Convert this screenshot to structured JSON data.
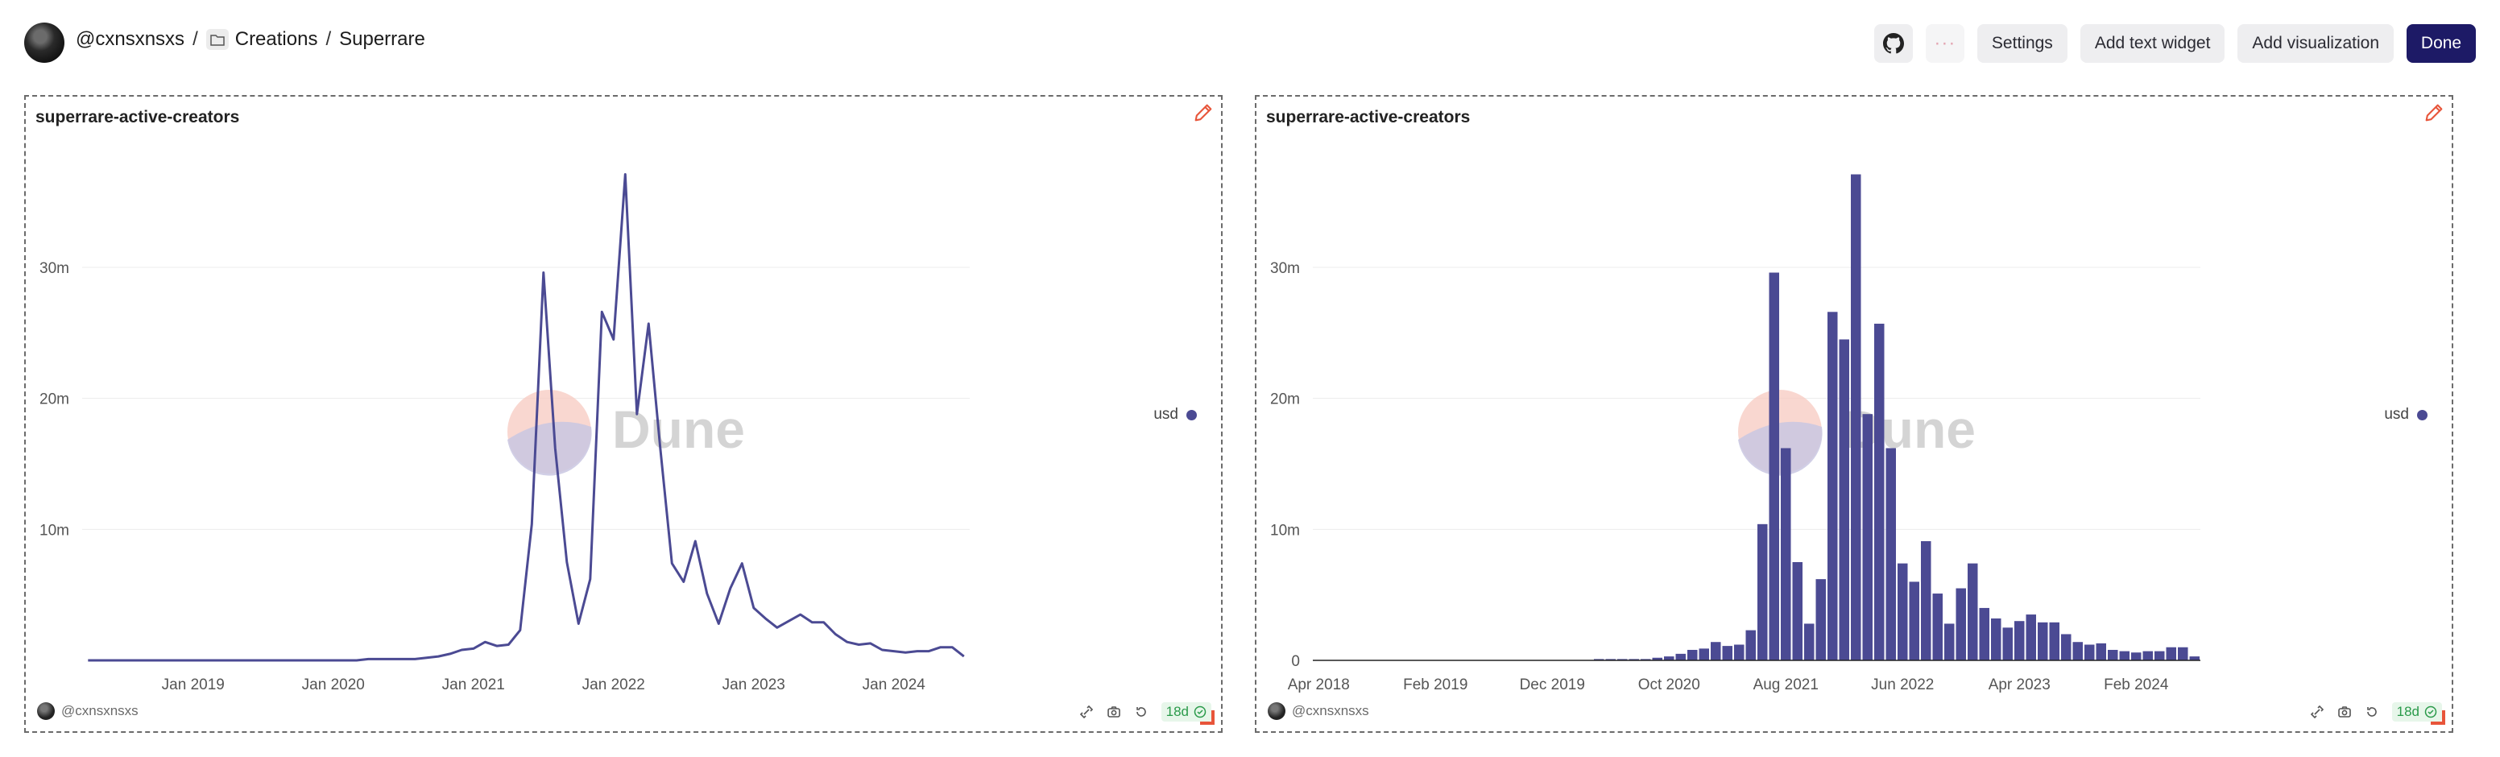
{
  "header": {
    "username": "@cxnsxnsxs",
    "separator": "/",
    "folder": "Creations",
    "dashboard": "Superrare"
  },
  "toolbar": {
    "more_label": "···",
    "settings_label": "Settings",
    "add_text_label": "Add text widget",
    "add_viz_label": "Add visualization",
    "done_label": "Done"
  },
  "colors": {
    "series": "#4b4a93",
    "done_button": "#1d1a66",
    "accent_edit": "#e8553a"
  },
  "panels": [
    {
      "title": "superrare-active-creators",
      "legend": "usd",
      "watermark": "Dune",
      "footer_user": "@cxnsxnsxs",
      "age": "18d"
    },
    {
      "title": "superrare-active-creators",
      "legend": "usd",
      "watermark": "Dune",
      "footer_user": "@cxnsxnsxs",
      "age": "18d"
    }
  ],
  "chart_data": [
    {
      "type": "line",
      "title": "superrare-active-creators",
      "series_name": "usd",
      "x_tick_labels": [
        "Jan 2019",
        "Jan 2020",
        "Jan 2021",
        "Jan 2022",
        "Jan 2023",
        "Jan 2024"
      ],
      "y_tick_labels": [
        "10m",
        "20m",
        "30m"
      ],
      "ylim": [
        0,
        37500000
      ],
      "grid": true,
      "legend_position": "right",
      "x_start": "2018-04",
      "values": [
        0,
        0,
        0,
        0,
        0,
        0,
        0,
        0,
        0,
        0,
        0,
        0,
        0,
        0,
        0,
        0,
        0,
        0,
        0,
        0,
        0,
        0,
        0,
        0,
        100000,
        100000,
        100000,
        100000,
        100000,
        200000,
        300000,
        500000,
        800000,
        900000,
        1400000,
        1100000,
        1200000,
        2300000,
        10400000,
        29600000,
        16200000,
        7500000,
        2800000,
        6200000,
        26600000,
        24500000,
        37100000,
        18800000,
        25700000,
        16200000,
        7400000,
        6000000,
        9100000,
        5100000,
        2800000,
        5500000,
        7400000,
        4000000,
        3200000,
        2500000,
        3000000,
        3500000,
        2900000,
        2900000,
        2000000,
        1400000,
        1200000,
        1300000,
        800000,
        700000,
        600000,
        700000,
        700000,
        1000000,
        1000000,
        300000
      ]
    },
    {
      "type": "bar",
      "title": "superrare-active-creators",
      "series_name": "usd",
      "x_tick_labels": [
        "Apr 2018",
        "Feb 2019",
        "Dec 2019",
        "Oct 2020",
        "Aug 2021",
        "Jun 2022",
        "Apr 2023",
        "Feb 2024"
      ],
      "y_tick_labels": [
        "0",
        "10m",
        "20m",
        "30m"
      ],
      "ylim": [
        0,
        37500000
      ],
      "grid": true,
      "legend_position": "right",
      "x_start": "2018-04",
      "values": [
        0,
        0,
        0,
        0,
        0,
        0,
        0,
        0,
        0,
        0,
        0,
        0,
        0,
        0,
        0,
        0,
        0,
        0,
        0,
        0,
        0,
        0,
        0,
        0,
        100000,
        100000,
        100000,
        100000,
        100000,
        200000,
        300000,
        500000,
        800000,
        900000,
        1400000,
        1100000,
        1200000,
        2300000,
        10400000,
        29600000,
        16200000,
        7500000,
        2800000,
        6200000,
        26600000,
        24500000,
        37100000,
        18800000,
        25700000,
        16200000,
        7400000,
        6000000,
        9100000,
        5100000,
        2800000,
        5500000,
        7400000,
        4000000,
        3200000,
        2500000,
        3000000,
        3500000,
        2900000,
        2900000,
        2000000,
        1400000,
        1200000,
        1300000,
        800000,
        700000,
        600000,
        700000,
        700000,
        1000000,
        1000000,
        300000
      ]
    }
  ]
}
